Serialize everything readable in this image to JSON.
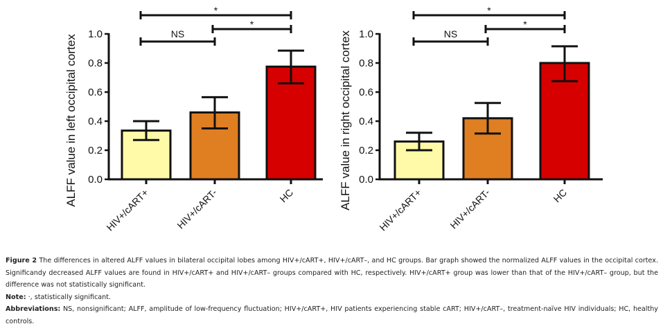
{
  "chart_data": [
    {
      "type": "bar",
      "title": "",
      "xlabel": "",
      "ylabel": "ALFF value in left occipital cortex",
      "ylim": [
        0,
        1.0
      ],
      "yticks": [
        0.0,
        0.2,
        0.4,
        0.6,
        0.8,
        1.0
      ],
      "ytick_labels": [
        "0.0",
        "0.2",
        "0.4",
        "0.6",
        "0.8",
        "1.0"
      ],
      "categories": [
        "HIV+/cART+",
        "HIV+/cART-",
        "HC"
      ],
      "values": [
        0.335,
        0.46,
        0.775
      ],
      "error_low": [
        0.27,
        0.35,
        0.66
      ],
      "error_high": [
        0.4,
        0.565,
        0.885
      ],
      "colors": [
        "#FFFAA8",
        "#E07E22",
        "#D60000"
      ],
      "grid": false,
      "significance": [
        {
          "from": 0,
          "to": 1,
          "label": "NS",
          "level": 1
        },
        {
          "from": 1,
          "to": 2,
          "label": "*",
          "level": 2
        },
        {
          "from": 0,
          "to": 2,
          "label": "*",
          "level": 3
        }
      ]
    },
    {
      "type": "bar",
      "title": "",
      "xlabel": "",
      "ylabel": "ALFF value in right occipital cortex",
      "ylim": [
        0,
        1.0
      ],
      "yticks": [
        0.0,
        0.2,
        0.4,
        0.6,
        0.8,
        1.0
      ],
      "ytick_labels": [
        "0.0",
        "0.2",
        "0.4",
        "0.6",
        "0.8",
        "1.0"
      ],
      "categories": [
        "HIV+/cART+",
        "HIV+/cART-",
        "HC"
      ],
      "values": [
        0.26,
        0.42,
        0.8
      ],
      "error_low": [
        0.2,
        0.315,
        0.675
      ],
      "error_high": [
        0.32,
        0.525,
        0.915
      ],
      "colors": [
        "#FFFAA8",
        "#E07E22",
        "#D60000"
      ],
      "grid": false,
      "significance": [
        {
          "from": 0,
          "to": 1,
          "label": "NS",
          "level": 1
        },
        {
          "from": 1,
          "to": 2,
          "label": "*",
          "level": 2
        },
        {
          "from": 0,
          "to": 2,
          "label": "*",
          "level": 3
        }
      ]
    }
  ],
  "caption": {
    "figure_label": "Figure 2",
    "figure_text": "The differences in altered ALFF values in bilateral occipital lobes among HIV+/cART+, HIV+/cART–, and HC groups. Bar graph showed the normalized ALFF values in the occipital cortex. Significandy decreased ALFF values are found in HIV+/cART+ and HIV+/cART– groups compared with HC, respectively. HIV+/cART+ group was lower than that of the HIV+/cART– group, but the difference was not statistically significant.",
    "note_label": "Note:",
    "note_text": "·, statistically significant.",
    "abbrev_label": "Abbreviations:",
    "abbrev_text": "NS, nonsignificant; ALFF, amplitude of low-frequency fluctuation; HIV+/cART+, HIV patients experiencing stable cART; HIV+/cART–, treatment-naïve HIV individuals; HC, healthy controls."
  }
}
